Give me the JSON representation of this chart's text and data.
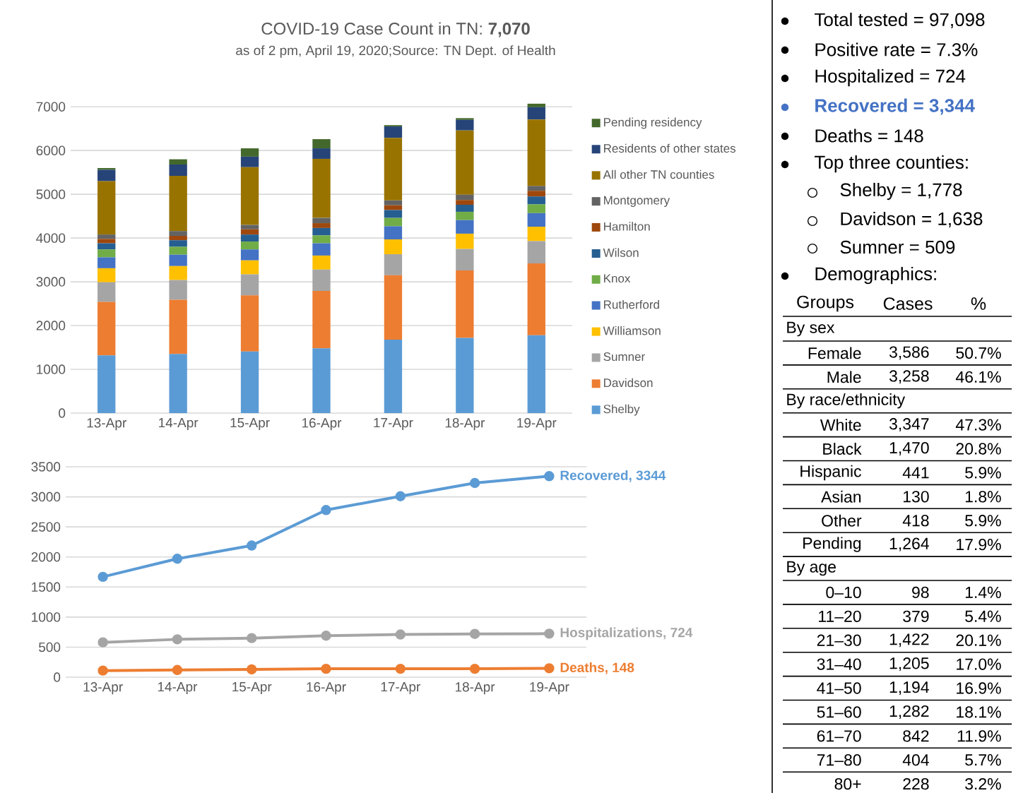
{
  "chart_data": [
    {
      "type": "bar",
      "title": "COVID-19 Case Count in TN: **7,070**",
      "subtitle": "as of 2 pm, April 19, 2020;Source: TN Dept. of Health",
      "stacked": true,
      "grid": "y",
      "legend": "right",
      "categories": [
        "13-Apr",
        "14-Apr",
        "15-Apr",
        "16-Apr",
        "17-Apr",
        "18-Apr",
        "19-Apr"
      ],
      "ylim": [
        0,
        7100
      ],
      "yticks": [
        0,
        1000,
        2000,
        3000,
        4000,
        5000,
        6000,
        7000
      ],
      "series": [
        {
          "name": "Shelby",
          "color": "#5b9bd5",
          "values": [
            1320,
            1350,
            1410,
            1480,
            1680,
            1720,
            1780
          ]
        },
        {
          "name": "Davidson",
          "color": "#ed7d31",
          "values": [
            1220,
            1240,
            1280,
            1310,
            1470,
            1540,
            1640
          ]
        },
        {
          "name": "Sumner",
          "color": "#a5a5a5",
          "values": [
            450,
            450,
            480,
            490,
            480,
            490,
            510
          ]
        },
        {
          "name": "Williamson",
          "color": "#ffc000",
          "values": [
            320,
            320,
            320,
            320,
            340,
            350,
            330
          ]
        },
        {
          "name": "Rutherford",
          "color": "#4472c4",
          "values": [
            250,
            260,
            250,
            280,
            300,
            310,
            310
          ]
        },
        {
          "name": "Knox",
          "color": "#70ad47",
          "values": [
            180,
            180,
            180,
            180,
            190,
            190,
            200
          ]
        },
        {
          "name": "Wilson",
          "color": "#255e91",
          "values": [
            140,
            150,
            160,
            170,
            180,
            160,
            180
          ]
        },
        {
          "name": "Hamilton",
          "color": "#9e480e",
          "values": [
            100,
            100,
            120,
            110,
            110,
            110,
            130
          ]
        },
        {
          "name": "Montgomery",
          "color": "#636363",
          "values": [
            100,
            110,
            100,
            120,
            110,
            120,
            110
          ]
        },
        {
          "name": "All other TN counties",
          "color": "#997300",
          "values": [
            1220,
            1260,
            1320,
            1350,
            1430,
            1470,
            1520
          ]
        },
        {
          "name": "Residents of other states",
          "color": "#264478",
          "values": [
            260,
            260,
            240,
            240,
            260,
            240,
            280
          ]
        },
        {
          "name": "Pending residency",
          "color": "#43682b",
          "values": [
            40,
            120,
            190,
            210,
            30,
            40,
            80
          ]
        }
      ]
    },
    {
      "type": "line",
      "grid": "y",
      "marker": "circle",
      "categories": [
        "13-Apr",
        "14-Apr",
        "15-Apr",
        "16-Apr",
        "17-Apr",
        "18-Apr",
        "19-Apr"
      ],
      "ylim": [
        0,
        3500
      ],
      "yticks": [
        0,
        500,
        1000,
        1500,
        2000,
        2500,
        3000,
        3500
      ],
      "series": [
        {
          "color": "#5b9bd5",
          "values": [
            1670,
            1970,
            2190,
            2780,
            3010,
            3230,
            3344
          ],
          "value_labels": [
            null,
            null,
            null,
            null,
            null,
            null,
            "Recovered, 3344"
          ]
        },
        {
          "color": "#a5a5a5",
          "values": [
            580,
            630,
            650,
            690,
            710,
            720,
            724
          ],
          "value_labels": [
            null,
            null,
            null,
            null,
            null,
            null,
            "Hospitalizations, 724"
          ]
        },
        {
          "color": "#ed7d31",
          "values": [
            110,
            120,
            130,
            140,
            140,
            140,
            148
          ],
          "value_labels": [
            null,
            null,
            null,
            null,
            null,
            null,
            "Deaths, 148"
          ]
        }
      ]
    },
    {
      "type": "other",
      "annotations": [
        "Total tested = 97,098",
        "Positive rate = 7.3%",
        "Hospitalized = 724",
        "Recovered = 3,344",
        "Deaths = 148",
        "Top three counties:",
        "Shelby = 1,778",
        "Davidson = 1,638",
        "Sumner = 509",
        "Demographics:"
      ],
      "categories": [
        "Groups",
        "Cases",
        "%"
      ],
      "y_categories": [
        "By sex",
        "Female",
        "Male",
        "By race/ethnicity",
        "White",
        "Black",
        "Hispanic",
        "Asian",
        "Other",
        "Pending",
        "By age",
        "0–10",
        "11–20",
        "21–30",
        "31–40",
        "41–50",
        "51–60",
        "61–70",
        "71–80",
        "80+"
      ],
      "cell_labels": [
        [
          null,
          null
        ],
        [
          "3,586",
          "50.7%"
        ],
        [
          "3,258",
          "46.1%"
        ],
        [
          null,
          null
        ],
        [
          "3,347",
          "47.3%"
        ],
        [
          "1,470",
          "20.8%"
        ],
        [
          "441",
          "5.9%"
        ],
        [
          "130",
          "1.8%"
        ],
        [
          "418",
          "5.9%"
        ],
        [
          "1,264",
          "17.9%"
        ],
        [
          null,
          null
        ],
        [
          "98",
          "1.4%"
        ],
        [
          "379",
          "5.4%"
        ],
        [
          "1,422",
          "20.1%"
        ],
        [
          "1,205",
          "17.0%"
        ],
        [
          "1,194",
          "16.9%"
        ],
        [
          "1,282",
          "18.1%"
        ],
        [
          "842",
          "11.9%"
        ],
        [
          "404",
          "5.7%"
        ],
        [
          "228",
          "3.2%"
        ]
      ]
    }
  ]
}
